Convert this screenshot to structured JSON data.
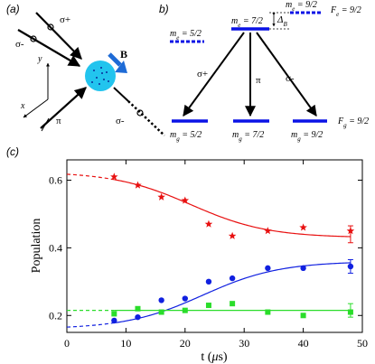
{
  "panel_a": {
    "label": "(a)",
    "field_label": "B",
    "beam_labels": {
      "sigma_plus": "σ+",
      "sigma_minus": "σ-",
      "pi": "π",
      "sigma_minus_2": "σ-"
    },
    "axis_labels": {
      "x": "x",
      "y": "y"
    },
    "colors": {
      "atom": "#22c4ee",
      "field_arrow": "#1e6bd6"
    }
  },
  "panel_b": {
    "label": "b)",
    "excited_levels": [
      {
        "label": "m",
        "sub": "e",
        "value": " = 5/2"
      },
      {
        "label": "m",
        "sub": "e",
        "value": " = 7/2"
      },
      {
        "label": "m",
        "sub": "e",
        "value": " = 9/2"
      }
    ],
    "ground_levels": [
      {
        "label": "m",
        "sub": "g",
        "value": " = 5/2"
      },
      {
        "label": "m",
        "sub": "g",
        "value": " = 7/2"
      },
      {
        "label": "m",
        "sub": "g",
        "value": " = 9/2"
      }
    ],
    "Fe": {
      "main": "F",
      "sub": "e",
      "rest": " = 9/2"
    },
    "Fg": {
      "main": "F",
      "sub": "g",
      "rest": " = 9/2"
    },
    "delta": {
      "main": "Δ",
      "sub": "B"
    },
    "transitions": {
      "sigma_plus": "σ+",
      "pi": "π",
      "sigma_minus": "σ-"
    },
    "level_color": "#0a12e6"
  },
  "panel_c": {
    "label": "(c)",
    "ylabel": "Population",
    "xlabel": {
      "pre": "t (",
      "mu": "μ",
      "post": "s)"
    }
  },
  "chart_data": {
    "type": "scatter",
    "x_range": [
      0,
      50
    ],
    "y_range": [
      0.15,
      0.66
    ],
    "xticks": [
      0,
      10,
      20,
      30,
      40,
      50
    ],
    "yticks": [
      0.2,
      0.4,
      0.6
    ],
    "ytick_labels": [
      "0.2",
      "0.4",
      "0.6"
    ],
    "series": [
      {
        "color": "#e81010",
        "marker": "star",
        "points": [
          [
            8,
            0.61
          ],
          [
            12,
            0.585
          ],
          [
            16,
            0.55
          ],
          [
            20,
            0.54
          ],
          [
            24,
            0.47
          ],
          [
            28,
            0.435
          ],
          [
            34,
            0.45
          ],
          [
            40,
            0.46
          ],
          [
            48,
            0.45
          ]
        ],
        "error_bar": {
          "x": 48,
          "y": 0.44,
          "err": 0.025
        },
        "fit": {
          "start": 0.625,
          "end": 0.43,
          "center": 21,
          "width": 6.5
        }
      },
      {
        "color": "#1020e0",
        "marker": "circle",
        "points": [
          [
            8,
            0.185
          ],
          [
            12,
            0.195
          ],
          [
            16,
            0.245
          ],
          [
            20,
            0.25
          ],
          [
            24,
            0.3
          ],
          [
            28,
            0.31
          ],
          [
            34,
            0.34
          ],
          [
            40,
            0.34
          ],
          [
            48,
            0.345
          ]
        ],
        "error_bar": {
          "x": 48,
          "y": 0.345,
          "err": 0.02
        },
        "fit": {
          "start": 0.16,
          "end": 0.36,
          "center": 23,
          "width": 6.5
        }
      },
      {
        "color": "#2add2a",
        "marker": "square",
        "points": [
          [
            8,
            0.205
          ],
          [
            12,
            0.22
          ],
          [
            16,
            0.21
          ],
          [
            20,
            0.215
          ],
          [
            24,
            0.23
          ],
          [
            28,
            0.235
          ],
          [
            34,
            0.21
          ],
          [
            40,
            0.2
          ],
          [
            48,
            0.21
          ]
        ],
        "error_bar": {
          "x": 48,
          "y": 0.215,
          "err": 0.02
        },
        "fit": {
          "start": 0.215,
          "end": 0.215,
          "center": 20,
          "width": 6.5
        }
      }
    ],
    "fit_dashed_before": 8
  }
}
